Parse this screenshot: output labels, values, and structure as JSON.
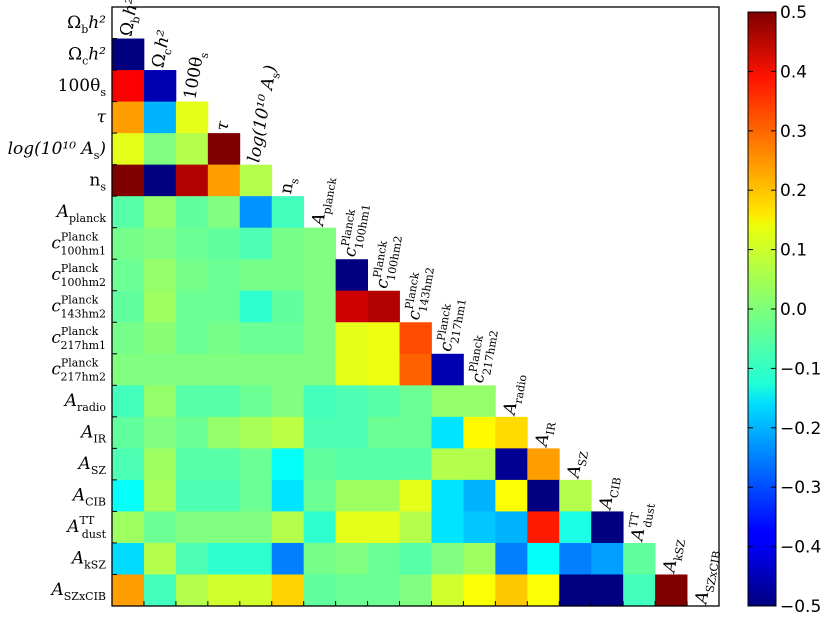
{
  "chart_data": {
    "type": "heatmap",
    "title": "",
    "xlabel": "",
    "ylabel": "",
    "parameters": [
      {
        "main": "Ω",
        "sub": "b",
        "tail": "h²",
        "italic": false
      },
      {
        "main": "Ω",
        "sub": "c",
        "tail": "h²",
        "italic": false
      },
      {
        "main": "100θ",
        "sub": "s",
        "tail": "",
        "italic": false
      },
      {
        "main": "τ",
        "sub": "",
        "tail": "",
        "italic": true
      },
      {
        "main": "log(10¹⁰ A",
        "sub": "s",
        "tail": ")",
        "italic": true
      },
      {
        "main": "n",
        "sub": "s",
        "tail": "",
        "italic": false
      },
      {
        "main": "A",
        "sub": "planck",
        "tail": "",
        "italic": true
      },
      {
        "main": "c",
        "sub": "100hm1",
        "sup": "Planck",
        "tail": "",
        "italic": true
      },
      {
        "main": "c",
        "sub": "100hm2",
        "sup": "Planck",
        "tail": "",
        "italic": true
      },
      {
        "main": "c",
        "sub": "143hm2",
        "sup": "Planck",
        "tail": "",
        "italic": true
      },
      {
        "main": "c",
        "sub": "217hm1",
        "sup": "Planck",
        "tail": "",
        "italic": true
      },
      {
        "main": "c",
        "sub": "217hm2",
        "sup": "Planck",
        "tail": "",
        "italic": true
      },
      {
        "main": "A",
        "sub": "radio",
        "tail": "",
        "italic": true
      },
      {
        "main": "A",
        "sub": "IR",
        "tail": "",
        "italic": true
      },
      {
        "main": "A",
        "sub": "SZ",
        "tail": "",
        "italic": true
      },
      {
        "main": "A",
        "sub": "CIB",
        "tail": "",
        "italic": true
      },
      {
        "main": "A",
        "sub": "dust",
        "sup": "TT",
        "tail": "",
        "italic": true
      },
      {
        "main": "A",
        "sub": "kSZ",
        "tail": "",
        "italic": true
      },
      {
        "main": "A",
        "sub": "SZxCIB",
        "tail": "",
        "italic": true
      }
    ],
    "correlation_rows": [
      [],
      [
        -0.5
      ],
      [
        0.38,
        -0.45
      ],
      [
        0.22,
        -0.2,
        0.1
      ],
      [
        0.1,
        0.0,
        0.05,
        0.5
      ],
      [
        0.5,
        -0.5,
        0.45,
        0.22,
        0.05
      ],
      [
        -0.04,
        0.02,
        -0.03,
        0.0,
        -0.23,
        -0.06
      ],
      [
        -0.01,
        0.0,
        -0.02,
        -0.03,
        -0.05,
        -0.01,
        0.0
      ],
      [
        -0.02,
        0.02,
        -0.01,
        -0.02,
        -0.01,
        -0.01,
        0.0,
        -0.5
      ],
      [
        -0.03,
        0.03,
        -0.02,
        -0.02,
        -0.08,
        -0.03,
        0.0,
        0.42,
        0.45
      ],
      [
        -0.01,
        0.01,
        -0.02,
        -0.01,
        -0.02,
        -0.02,
        0.0,
        0.1,
        0.11,
        0.3
      ],
      [
        0.0,
        0.0,
        0.0,
        0.0,
        0.0,
        0.0,
        0.0,
        0.1,
        0.11,
        0.28,
        -0.45
      ],
      [
        -0.06,
        0.02,
        -0.04,
        -0.04,
        -0.02,
        0.0,
        -0.06,
        -0.05,
        -0.04,
        -0.02,
        0.02,
        0.02
      ],
      [
        -0.03,
        0.0,
        -0.02,
        0.02,
        0.04,
        0.06,
        -0.05,
        -0.05,
        -0.02,
        -0.02,
        -0.15,
        0.13,
        0.16
      ],
      [
        -0.05,
        0.03,
        -0.04,
        -0.04,
        -0.02,
        -0.12,
        -0.03,
        -0.04,
        -0.04,
        -0.04,
        0.05,
        0.05,
        -0.48,
        0.22
      ],
      [
        -0.12,
        0.04,
        -0.05,
        -0.05,
        -0.02,
        -0.15,
        -0.02,
        0.03,
        0.03,
        0.1,
        -0.15,
        -0.2,
        0.12,
        -0.5,
        0.05
      ],
      [
        0.03,
        -0.02,
        0.0,
        0.0,
        0.0,
        0.05,
        -0.08,
        0.1,
        0.1,
        0.05,
        -0.15,
        -0.18,
        -0.2,
        0.35,
        -0.1,
        -0.5
      ],
      [
        -0.16,
        0.05,
        -0.05,
        -0.08,
        -0.08,
        -0.25,
        -0.01,
        0.0,
        -0.02,
        -0.04,
        0.0,
        0.03,
        -0.25,
        -0.12,
        -0.25,
        -0.22,
        -0.03
      ],
      [
        0.22,
        -0.06,
        0.05,
        0.08,
        0.08,
        0.17,
        -0.03,
        -0.02,
        -0.02,
        0.0,
        0.08,
        0.12,
        0.18,
        0.12,
        -0.5,
        -0.5,
        -0.06,
        0.5
      ]
    ],
    "colorbar": {
      "min": -0.5,
      "max": 0.5,
      "ticks": [
        0.5,
        0.4,
        0.3,
        0.2,
        0.1,
        0.0,
        -0.1,
        -0.2,
        -0.3,
        -0.4,
        -0.5
      ],
      "tick_labels": [
        "0.5",
        "0.4",
        "0.3",
        "0.2",
        "0.1",
        "0.0",
        "−0.1",
        "−0.2",
        "−0.3",
        "−0.4",
        "−0.5"
      ],
      "colormap": "jet"
    },
    "grid": false
  }
}
